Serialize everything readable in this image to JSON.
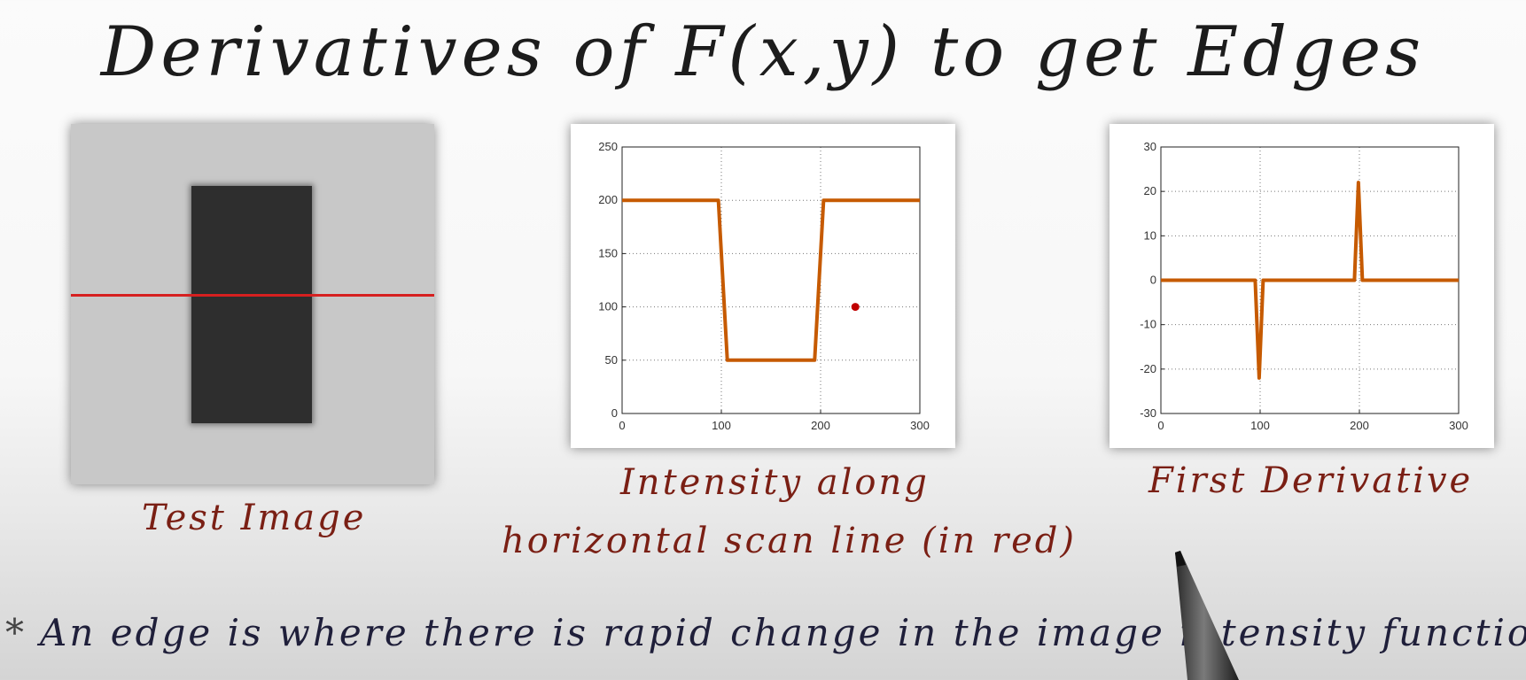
{
  "title": "Derivatives of F(x,y) to get Edges",
  "captions": {
    "test_image": "Test Image",
    "intensity_line1": "Intensity along",
    "intensity_line2": "horizontal scan line (in red)",
    "derivative": "First Derivative"
  },
  "bullet": {
    "star": "*",
    "text": "An edge is where there is rapid change in the image intensity function"
  },
  "colors": {
    "scan_line": "#d62020",
    "curve": "#c65a00",
    "caption": "#7a1f14",
    "marker": "#c00000"
  },
  "chart_data": [
    {
      "type": "line",
      "title": "",
      "xlabel": "",
      "ylabel": "",
      "xlim": [
        0,
        300
      ],
      "ylim": [
        0,
        250
      ],
      "xticks": [
        0,
        100,
        200,
        300
      ],
      "yticks": [
        0,
        50,
        100,
        150,
        200,
        250
      ],
      "grid": true,
      "series": [
        {
          "values_x": [
            0,
            97,
            106,
            194,
            203,
            300
          ],
          "values_y": [
            200,
            200,
            50,
            50,
            200,
            200
          ]
        }
      ],
      "marker_point": [
        235,
        100
      ]
    },
    {
      "type": "line",
      "title": "",
      "xlabel": "",
      "ylabel": "",
      "xlim": [
        0,
        300
      ],
      "ylim": [
        -30,
        30
      ],
      "xticks": [
        0,
        100,
        200,
        300
      ],
      "yticks": [
        -30,
        -20,
        -10,
        0,
        10,
        20,
        30
      ],
      "grid": true,
      "series": [
        {
          "values_x": [
            0,
            95,
            99,
            103,
            195,
            199,
            203,
            300
          ],
          "values_y": [
            0,
            0,
            -22,
            0,
            0,
            22,
            0,
            0
          ]
        }
      ]
    }
  ]
}
